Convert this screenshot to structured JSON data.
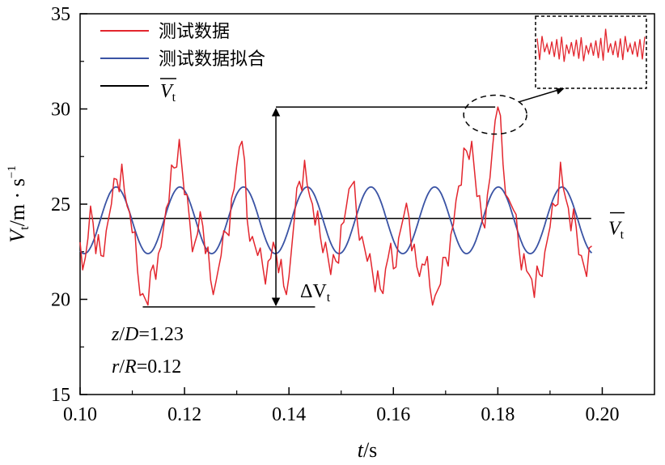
{
  "chart_data": {
    "type": "line",
    "x_axis": {
      "variable": "t",
      "unit": "s",
      "range": [
        0.1,
        0.21
      ],
      "ticks": [
        "0.10",
        "0.12",
        "0.14",
        "0.16",
        "0.18",
        "0.20"
      ]
    },
    "y_axis": {
      "variable": "V",
      "subscript": "t",
      "unit_main": "m · s",
      "unit_exp": "−1",
      "range": [
        15,
        35
      ],
      "ticks": [
        "15",
        "20",
        "25",
        "30",
        "35"
      ]
    },
    "series": [
      {
        "name": "测试数据",
        "color": "#e3262e",
        "x": [
          0.1,
          0.101,
          0.102,
          0.103,
          0.104,
          0.105,
          0.106,
          0.107,
          0.108,
          0.109,
          0.11,
          0.111,
          0.112,
          0.113,
          0.114,
          0.115,
          0.116,
          0.117,
          0.118,
          0.119,
          0.12,
          0.121,
          0.122,
          0.123,
          0.124,
          0.125,
          0.126,
          0.127,
          0.128,
          0.129,
          0.13,
          0.131,
          0.132,
          0.133,
          0.134,
          0.135,
          0.136,
          0.137,
          0.138,
          0.139,
          0.14,
          0.141,
          0.142,
          0.143,
          0.144,
          0.145,
          0.146,
          0.147,
          0.148,
          0.149,
          0.15,
          0.151,
          0.152,
          0.153,
          0.154,
          0.155,
          0.156,
          0.157,
          0.158,
          0.159,
          0.16,
          0.161,
          0.162,
          0.163,
          0.164,
          0.165,
          0.166,
          0.167,
          0.168,
          0.169,
          0.17,
          0.171,
          0.172,
          0.173,
          0.174,
          0.175,
          0.176,
          0.177,
          0.178,
          0.179,
          0.18,
          0.181,
          0.182,
          0.183,
          0.184,
          0.185,
          0.186,
          0.187,
          0.188,
          0.189,
          0.19,
          0.191,
          0.192,
          0.193,
          0.194,
          0.195,
          0.196,
          0.197,
          0.198
        ],
        "y": [
          23.0,
          22.2,
          24.9,
          22.4,
          22.3,
          23.6,
          25.0,
          26.3,
          27.1,
          24.9,
          23.5,
          21.5,
          20.3,
          19.7,
          21.8,
          22.4,
          23.8,
          25.1,
          26.9,
          28.4,
          25.5,
          24.1,
          23.0,
          24.6,
          22.4,
          21.0,
          20.9,
          22.3,
          23.5,
          25.3,
          27.0,
          28.3,
          24.2,
          23.3,
          22.3,
          21.7,
          22.0,
          23.0,
          21.4,
          20.7,
          21.2,
          24.1,
          26.2,
          27.3,
          25.4,
          23.9,
          23.3,
          23.0,
          21.3,
          22.0,
          23.9,
          24.9,
          26.0,
          24.3,
          23.3,
          22.0,
          21.4,
          21.5,
          20.3,
          22.2,
          21.6,
          23.2,
          24.4,
          24.3,
          22.9,
          21.2,
          21.8,
          20.6,
          20.2,
          20.8,
          22.2,
          23.4,
          25.2,
          26.0,
          27.8,
          28.3,
          25.4,
          24.1,
          25.5,
          28.0,
          30.1,
          27.1,
          25.3,
          24.7,
          22.8,
          22.4,
          21.3,
          20.1,
          21.3,
          22.5,
          23.8,
          24.9,
          27.2,
          25.3,
          23.6,
          23.8,
          22.3,
          21.2,
          22.8
        ]
      },
      {
        "name": "测试数据拟合",
        "color": "#3a53a4",
        "model": {
          "mean": 24.15,
          "amplitude": 1.75,
          "period": 0.0122,
          "peak_t": 0.1069
        },
        "x_range": [
          0.1,
          0.198
        ]
      },
      {
        "name": "V̄t",
        "color": "#000000",
        "y_const": 24.25,
        "x_range": [
          0.1,
          0.2095
        ]
      }
    ],
    "legend": {
      "placement": "top-left",
      "entries": [
        "测试数据",
        "测试数据拟合",
        "V"
      ]
    },
    "annotations": {
      "mean_label": "V",
      "mean_label_sub": "t",
      "delta_label": "ΔV",
      "delta_label_sub": "t",
      "z_var": "z",
      "z_slash": "/",
      "z_den": "D",
      "z_value": "=1.23",
      "r_var": "r",
      "r_slash": "/",
      "r_den": "R",
      "r_value": "=0.12",
      "delta_range": {
        "max": 30.1,
        "min": 19.6,
        "x": 0.1375
      },
      "zoom_inset": {
        "t_center": 0.1795,
        "v_center": 29.7
      }
    },
    "grid": false
  }
}
